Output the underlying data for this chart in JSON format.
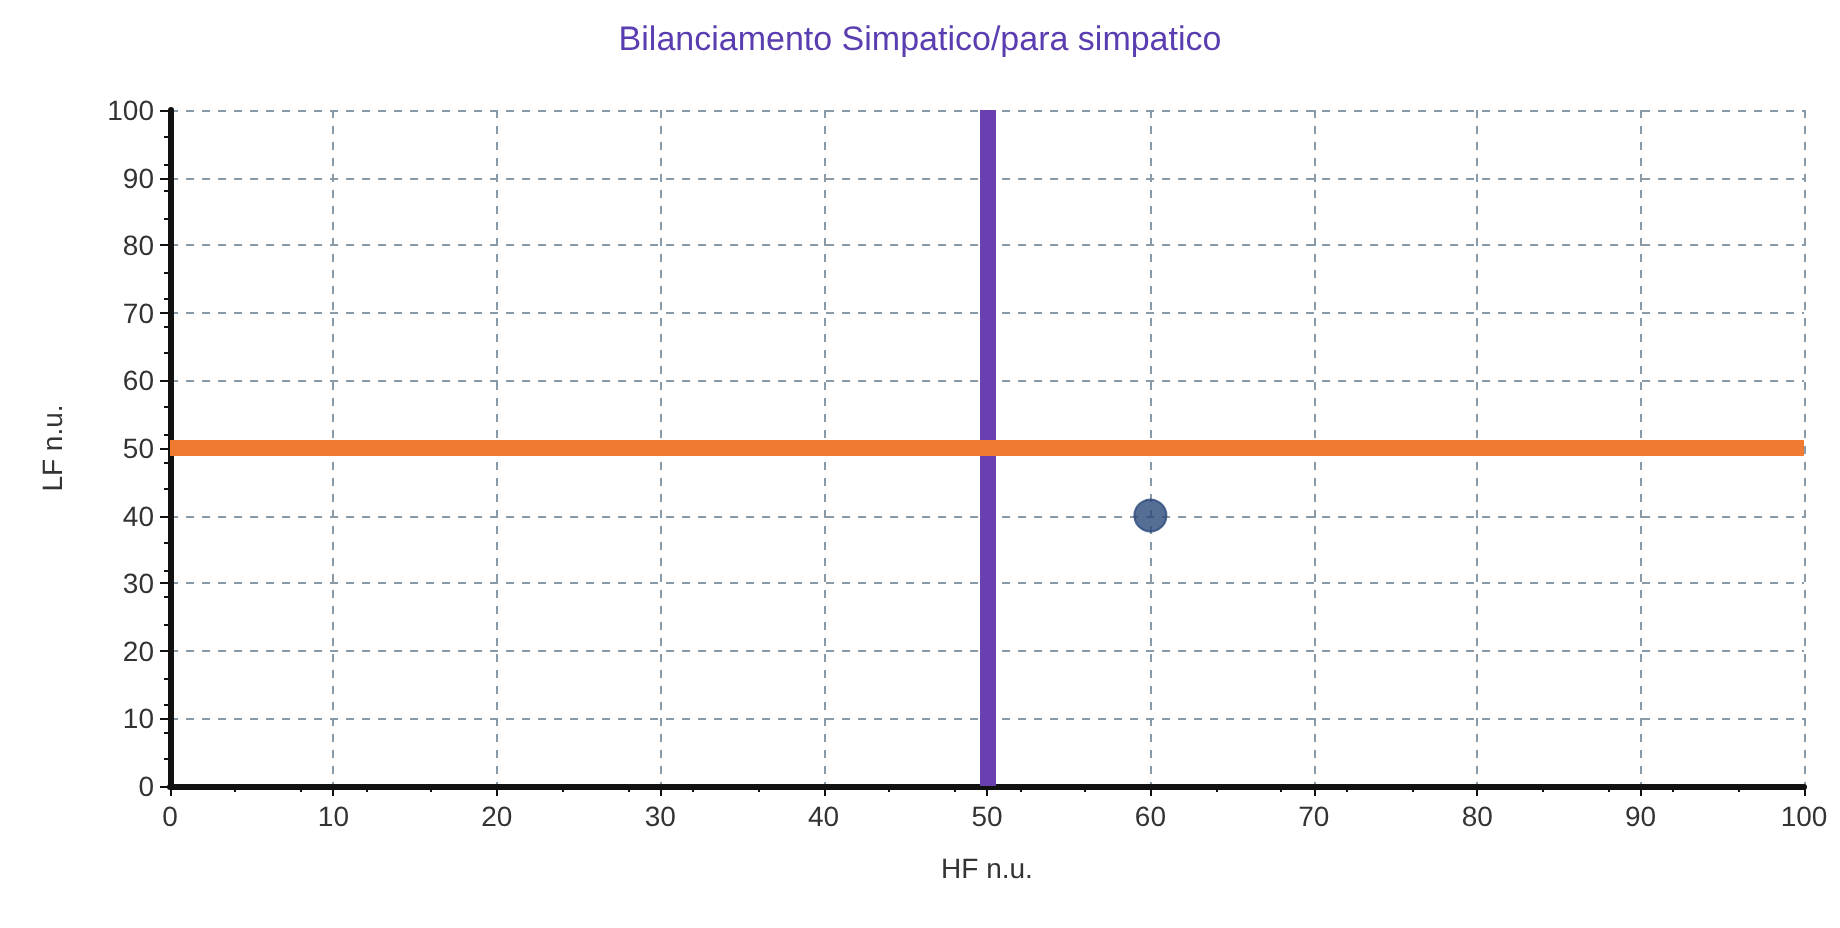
{
  "chart_data": {
    "type": "scatter",
    "title": "Bilanciamento Simpatico/para simpatico",
    "xlabel": "HF n.u.",
    "ylabel": "LF n.u.",
    "x": [
      60
    ],
    "series": [
      {
        "color": "#2a4a7a",
        "values": [
          40
        ]
      }
    ],
    "xlim": [
      0,
      100
    ],
    "xticks": [
      0,
      10,
      20,
      30,
      40,
      50,
      60,
      70,
      80,
      90,
      100
    ],
    "ylim": [
      0,
      100
    ],
    "yticks": [
      0,
      10,
      20,
      30,
      40,
      50,
      60,
      70,
      80,
      90,
      100
    ],
    "grid": true,
    "marker": "circle",
    "ref_lines": [
      {
        "axis": "x",
        "value": 50,
        "color": "#6a3fb0"
      },
      {
        "axis": "y",
        "value": 50,
        "color": "#f07a30"
      }
    ]
  }
}
